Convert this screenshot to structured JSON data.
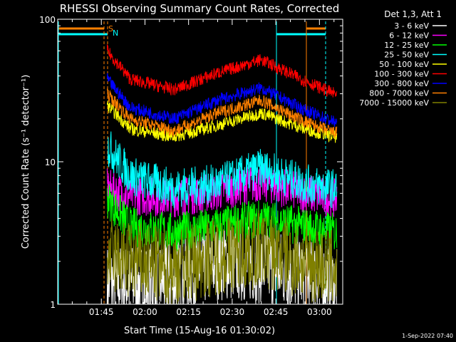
{
  "colors": {
    "background": "#000000",
    "foreground": "#ffffff",
    "flag_saa": "#ff8000",
    "flag_night": "#00ffff"
  },
  "chart_data": {
    "type": "line",
    "title": "RHESSI Observing Summary Count Rates, Corrected",
    "xlabel": "Start Time (15-Aug-16 01:30:02)",
    "ylabel": "Corrected Count Rate (s⁻¹ detector⁻¹)",
    "ylog": true,
    "xlim": [
      "01:30:02",
      "03:08:00"
    ],
    "ylim": [
      1,
      100
    ],
    "x_ticks": [
      "01:45",
      "02:00",
      "02:15",
      "02:30",
      "02:45",
      "03:00"
    ],
    "y_ticks": [
      "1",
      "10",
      "100"
    ],
    "legend_header": "Det 1,3, Att 1",
    "legend_position": "top-right",
    "flag_labels": [
      "S",
      "N"
    ],
    "footer_date": "1-Sep-2022 07:40",
    "x_minutes_from": "01:30",
    "series": [
      {
        "name": "3 - 6 keV",
        "color": "#ffffff",
        "x": [
          17,
          25,
          40,
          55,
          70,
          85,
          95
        ],
        "values": [
          1.4,
          1.4,
          1.5,
          2.0,
          1.9,
          1.6,
          1.4
        ]
      },
      {
        "name": "6 - 12 keV",
        "color": "#ff00ff",
        "x": [
          17,
          25,
          40,
          55,
          70,
          85,
          95
        ],
        "values": [
          6.5,
          5.8,
          5.6,
          6.2,
          7.2,
          6.0,
          5.5
        ]
      },
      {
        "name": "12 - 25 keV",
        "color": "#00ff00",
        "x": [
          17,
          25,
          40,
          55,
          70,
          85,
          95
        ],
        "values": [
          5.5,
          3.5,
          3.2,
          3.5,
          4.0,
          3.5,
          3.2
        ]
      },
      {
        "name": "25 - 50 keV",
        "color": "#00ffff",
        "x": [
          17,
          25,
          40,
          55,
          70,
          85,
          95
        ],
        "values": [
          13.0,
          8.0,
          6.5,
          7.0,
          9.0,
          7.0,
          6.5
        ]
      },
      {
        "name": "50 - 100 keV",
        "color": "#ffff00",
        "x": [
          17,
          25,
          40,
          55,
          70,
          85,
          95
        ],
        "values": [
          25.0,
          17.0,
          15.0,
          18.0,
          22.0,
          17.0,
          15.0
        ]
      },
      {
        "name": "100 - 300 keV",
        "color": "#ff0000",
        "x": [
          17,
          25,
          40,
          55,
          70,
          85,
          95
        ],
        "values": [
          60.0,
          38.0,
          32.0,
          42.0,
          52.0,
          37.0,
          30.0
        ]
      },
      {
        "name": "300 - 800 keV",
        "color": "#0000ff",
        "x": [
          17,
          25,
          40,
          55,
          70,
          85,
          95
        ],
        "values": [
          38.0,
          24.0,
          20.0,
          27.0,
          33.0,
          23.0,
          19.0
        ]
      },
      {
        "name": "800 - 7000 keV",
        "color": "#ff8000",
        "x": [
          17,
          25,
          40,
          55,
          70,
          85,
          95
        ],
        "values": [
          30.0,
          20.0,
          16.5,
          22.0,
          27.0,
          19.0,
          16.0
        ]
      },
      {
        "name": "7000 - 15000 keV",
        "color": "#808000",
        "x": [
          17,
          25,
          40,
          55,
          70,
          85,
          95
        ],
        "values": [
          2.2,
          2.0,
          1.8,
          2.2,
          2.4,
          2.0,
          1.8
        ]
      }
    ]
  }
}
